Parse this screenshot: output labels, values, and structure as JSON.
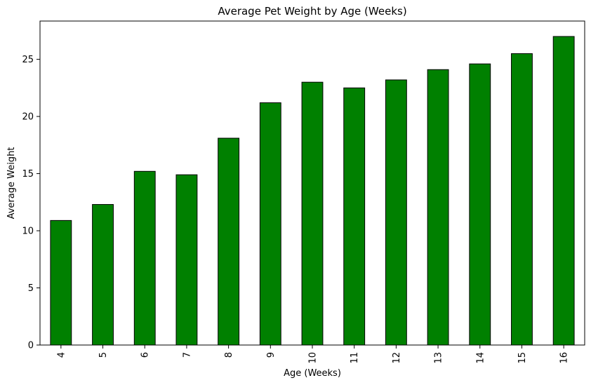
{
  "chart_data": {
    "type": "bar",
    "title": "Average Pet Weight by Age (Weeks)",
    "xlabel": "Age (Weeks)",
    "ylabel": "Average Weight",
    "categories": [
      "4",
      "5",
      "6",
      "7",
      "8",
      "9",
      "10",
      "11",
      "12",
      "13",
      "14",
      "15",
      "16"
    ],
    "values": [
      10.9,
      12.3,
      15.2,
      14.9,
      18.1,
      21.2,
      23.0,
      22.5,
      23.2,
      24.1,
      24.6,
      25.5,
      27.0
    ],
    "ylim": [
      0,
      28.35
    ],
    "yticks": [
      0,
      5,
      10,
      15,
      20,
      25
    ],
    "bar_color": "#008000",
    "edge_color": "#000000",
    "grid": false,
    "legend": "none"
  }
}
